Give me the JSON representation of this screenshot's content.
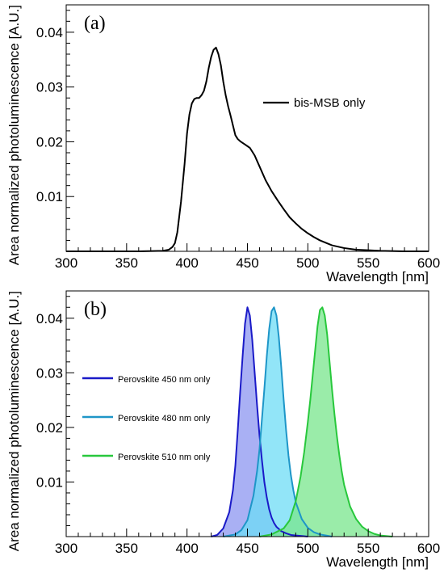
{
  "chart_data": [
    {
      "type": "line",
      "panel_label": "(a)",
      "xlabel": "Wavelength [nm]",
      "ylabel": "Area normalized photoluminescence [A.U.]",
      "xlim": [
        300,
        600
      ],
      "ylim": [
        0,
        0.045
      ],
      "x_ticks": [
        300,
        350,
        400,
        450,
        500,
        550,
        600
      ],
      "x_tick_labels": [
        "300",
        "350",
        "400",
        "450",
        "500",
        "550",
        "600"
      ],
      "y_ticks": [
        0.01,
        0.02,
        0.03,
        0.04
      ],
      "y_tick_labels": [
        "0.01",
        "0.02",
        "0.03",
        "0.04"
      ],
      "legend_position": "upper-right",
      "series": [
        {
          "name": "bis-MSB only",
          "color": "#000000",
          "fill": false,
          "x": [
            300,
            360,
            380,
            385,
            388,
            390,
            392,
            395,
            398,
            400,
            402,
            404,
            406,
            408,
            410,
            412,
            414,
            416,
            418,
            420,
            422,
            424,
            426,
            428,
            430,
            432,
            434,
            436,
            438,
            440,
            442,
            444,
            446,
            448,
            450,
            452,
            454,
            456,
            458,
            460,
            465,
            470,
            475,
            480,
            485,
            490,
            495,
            500,
            505,
            510,
            520,
            530,
            540,
            550,
            560,
            580,
            600
          ],
          "y": [
            0,
            0,
            0.0001,
            0.0003,
            0.0008,
            0.0015,
            0.0035,
            0.009,
            0.016,
            0.0215,
            0.025,
            0.027,
            0.0278,
            0.028,
            0.028,
            0.0285,
            0.0293,
            0.031,
            0.0335,
            0.0355,
            0.0368,
            0.0372,
            0.036,
            0.034,
            0.031,
            0.0285,
            0.0265,
            0.0248,
            0.023,
            0.0212,
            0.0205,
            0.0201,
            0.0198,
            0.0195,
            0.0192,
            0.0189,
            0.0182,
            0.0175,
            0.0165,
            0.0155,
            0.013,
            0.011,
            0.0093,
            0.0077,
            0.0062,
            0.0051,
            0.0041,
            0.0033,
            0.0026,
            0.002,
            0.0011,
            0.0006,
            0.0003,
            0.0002,
            0.0001,
            0,
            0
          ]
        }
      ]
    },
    {
      "type": "area",
      "panel_label": "(b)",
      "xlabel": "Wavelength [nm]",
      "ylabel": "Area normalized photoluminescence [A.U.]",
      "xlim": [
        300,
        600
      ],
      "ylim": [
        0,
        0.045
      ],
      "x_ticks": [
        300,
        350,
        400,
        450,
        500,
        550,
        600
      ],
      "x_tick_labels": [
        "300",
        "350",
        "400",
        "450",
        "500",
        "550",
        "600"
      ],
      "y_ticks": [
        0.01,
        0.02,
        0.03,
        0.04
      ],
      "y_tick_labels": [
        "0.01",
        "0.02",
        "0.03",
        "0.04"
      ],
      "legend_position": "left",
      "series": [
        {
          "name": "Perovskite 450 nm only",
          "color": "#1a1ac8",
          "fill_color": "#8c96f0",
          "fill": true,
          "x": [
            420,
            425,
            430,
            435,
            438,
            440,
            442,
            444,
            446,
            448,
            450,
            452,
            454,
            456,
            458,
            460,
            462,
            464,
            466,
            468,
            470,
            472,
            474,
            478,
            482,
            486,
            490,
            496,
            500
          ],
          "y": [
            0,
            0.0003,
            0.0015,
            0.0045,
            0.0085,
            0.013,
            0.0195,
            0.0265,
            0.033,
            0.039,
            0.042,
            0.0405,
            0.036,
            0.03,
            0.024,
            0.0185,
            0.014,
            0.01,
            0.0072,
            0.005,
            0.0035,
            0.0025,
            0.0018,
            0.001,
            0.0006,
            0.0003,
            0.0002,
            0.0001,
            0
          ]
        },
        {
          "name": "Perovskite 480 nm only",
          "color": "#1e96c8",
          "fill_color": "#6edcf5",
          "fill": true,
          "x": [
            430,
            440,
            445,
            450,
            455,
            458,
            460,
            462,
            464,
            466,
            468,
            470,
            472,
            474,
            476,
            478,
            480,
            482,
            484,
            486,
            488,
            490,
            495,
            500,
            505,
            510,
            515,
            520
          ],
          "y": [
            0,
            0.0004,
            0.0012,
            0.003,
            0.0075,
            0.012,
            0.016,
            0.0215,
            0.027,
            0.033,
            0.038,
            0.0413,
            0.042,
            0.0405,
            0.0365,
            0.031,
            0.025,
            0.0195,
            0.0148,
            0.0112,
            0.0085,
            0.0063,
            0.0032,
            0.0016,
            0.0008,
            0.0004,
            0.0002,
            0
          ]
        },
        {
          "name": "Perovskite 510 nm only",
          "color": "#28c83c",
          "fill_color": "#78e68c",
          "fill": true,
          "x": [
            460,
            470,
            480,
            485,
            490,
            494,
            497,
            500,
            502,
            504,
            506,
            508,
            510,
            512,
            514,
            516,
            518,
            520,
            522,
            524,
            526,
            528,
            530,
            535,
            540,
            545,
            550,
            555,
            560,
            570
          ],
          "y": [
            0,
            0.0004,
            0.0015,
            0.003,
            0.0065,
            0.011,
            0.0155,
            0.021,
            0.025,
            0.0295,
            0.034,
            0.0385,
            0.0415,
            0.042,
            0.0405,
            0.037,
            0.032,
            0.027,
            0.0225,
            0.0185,
            0.015,
            0.012,
            0.0095,
            0.0055,
            0.0032,
            0.0018,
            0.001,
            0.0005,
            0.0002,
            0
          ]
        }
      ]
    }
  ]
}
